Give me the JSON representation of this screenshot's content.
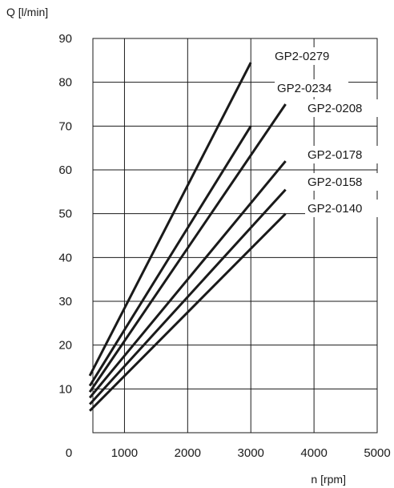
{
  "chart_data": {
    "type": "line",
    "title": "",
    "ylabel": "Q [l/min]",
    "xlabel": "n [rpm]",
    "xlim": [
      0,
      5000
    ],
    "ylim": [
      0,
      90
    ],
    "x_ticks": [
      0,
      1000,
      2000,
      3000,
      4000,
      5000
    ],
    "x_tick_labels": [
      "0",
      "1000",
      "2000",
      "3000",
      "4000",
      "5000"
    ],
    "y_ticks": [
      10,
      20,
      30,
      40,
      50,
      60,
      70,
      80,
      90
    ],
    "y_tick_labels": [
      "10",
      "20",
      "30",
      "40",
      "50",
      "60",
      "70",
      "80",
      "90"
    ],
    "grid": true,
    "legend": "none (labels placed at line ends)",
    "line_color": "#1a1a1a",
    "series": [
      {
        "name": "GP2-0279",
        "x": [
          450,
          3000
        ],
        "y": [
          13,
          84.5
        ]
      },
      {
        "name": "GP2-0234",
        "x": [
          450,
          3000
        ],
        "y": [
          10.7,
          70
        ]
      },
      {
        "name": "GP2-0208",
        "x": [
          450,
          3550
        ],
        "y": [
          9.3,
          75
        ]
      },
      {
        "name": "GP2-0178",
        "x": [
          450,
          3550
        ],
        "y": [
          8,
          62
        ]
      },
      {
        "name": "GP2-0158",
        "x": [
          450,
          3550
        ],
        "y": [
          6.5,
          55.5
        ]
      },
      {
        "name": "GP2-0140",
        "x": [
          450,
          3550
        ],
        "y": [
          5,
          50
        ]
      }
    ]
  }
}
